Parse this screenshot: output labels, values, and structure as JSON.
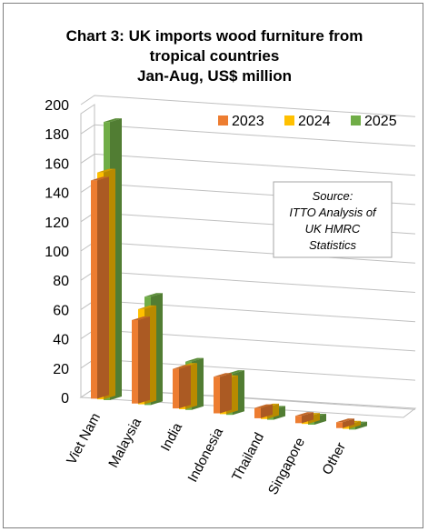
{
  "chart_data": {
    "type": "bar",
    "title": "Chart 3: UK imports wood furniture from",
    "title_line2": "tropical countries",
    "subtitle": "Jan-Aug, US$ million",
    "categories": [
      "Viet Nam",
      "Malaysia",
      "India",
      "Indonesia",
      "Thailand",
      "Singapore",
      "Other"
    ],
    "series": [
      {
        "name": "2023",
        "color": "#ed7d31",
        "values": [
          149,
          57,
          27,
          25,
          7,
          5,
          4
        ]
      },
      {
        "name": "2024",
        "color": "#ffc000",
        "values": [
          155,
          65,
          29,
          24,
          8,
          5,
          3
        ]
      },
      {
        "name": "2025",
        "color": "#70ad47",
        "values": [
          190,
          74,
          33,
          28,
          7,
          5,
          3
        ]
      }
    ],
    "yticks": [
      "0",
      "20",
      "40",
      "60",
      "80",
      "100",
      "120",
      "140",
      "160",
      "180",
      "200"
    ],
    "ylim": [
      0,
      200
    ],
    "legend_position": "top-right",
    "grid": true,
    "view": "3d-clustered-column",
    "annotation": [
      "Source:",
      "ITTO Analysis of",
      "UK HMRC",
      "Statistics"
    ]
  }
}
